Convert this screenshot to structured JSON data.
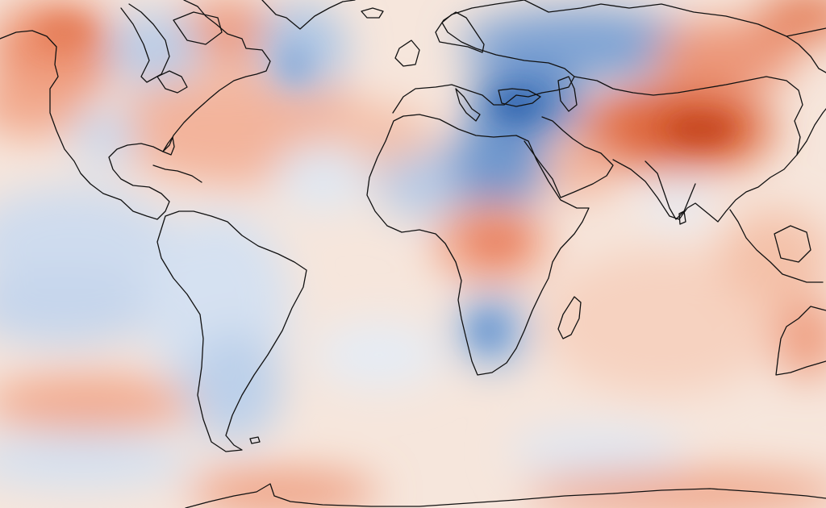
{
  "map": {
    "projection": "equirectangular",
    "field": "anomaly",
    "colors": {
      "strong_warm": "#d9531e",
      "warm": "#f0a080",
      "light_warm": "#fbe3d6",
      "neutral": "#f5f3f2",
      "light_cool": "#dde7f3",
      "cool": "#9dbcdf",
      "strong_cool": "#3a6fb5",
      "coastline": "#111111"
    },
    "regions": [
      {
        "name": "western-north-america",
        "tone": "warm"
      },
      {
        "name": "hudson-bay",
        "tone": "cool"
      },
      {
        "name": "greenland-sea",
        "tone": "cool"
      },
      {
        "name": "eastern-europe-black-sea",
        "tone": "strong_cool"
      },
      {
        "name": "north-africa-sahara",
        "tone": "cool"
      },
      {
        "name": "central-asia-tibet",
        "tone": "strong_warm"
      },
      {
        "name": "east-africa",
        "tone": "warm"
      },
      {
        "name": "southern-africa",
        "tone": "cool"
      },
      {
        "name": "south-america",
        "tone": "light_cool"
      },
      {
        "name": "eastern-pacific",
        "tone": "light_cool"
      },
      {
        "name": "south-pacific-band",
        "tone": "warm"
      },
      {
        "name": "indian-ocean",
        "tone": "light_warm"
      },
      {
        "name": "southern-ocean",
        "tone": "warm"
      }
    ]
  }
}
